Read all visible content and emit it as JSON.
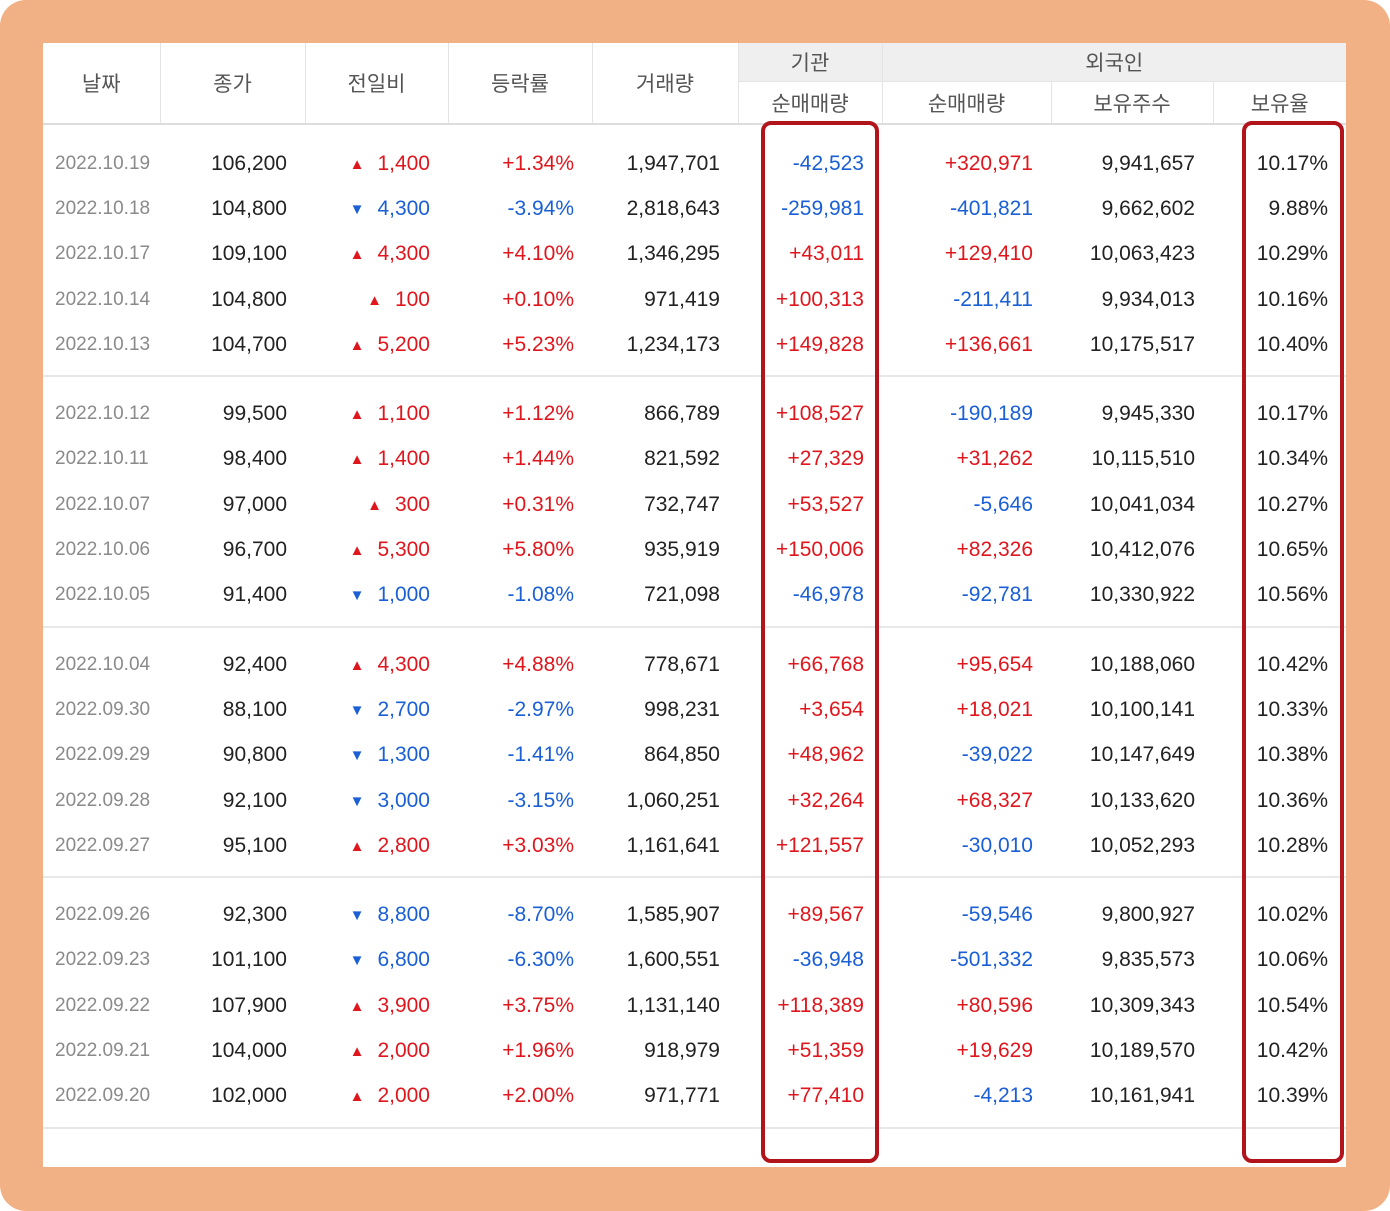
{
  "headers": {
    "date": "날짜",
    "close": "종가",
    "change": "전일비",
    "rate": "등락률",
    "volume": "거래량",
    "institution": "기관",
    "foreign": "외국인",
    "inst_net": "순매매량",
    "foreign_net": "순매매량",
    "foreign_shares": "보유주수",
    "foreign_ratio": "보유율"
  },
  "colors": {
    "frame": "#f2b184",
    "up": "#e0161d",
    "down": "#1a5fd6",
    "highlight": "#b2141c"
  },
  "rows": [
    {
      "date": "2022.10.19",
      "close": "106,200",
      "dir": "up",
      "change": "1,400",
      "rate": "+1.34%",
      "volume": "1,947,701",
      "inst": "-42,523",
      "foreign": "+320,971",
      "shares": "9,941,657",
      "ratio": "10.17%"
    },
    {
      "date": "2022.10.18",
      "close": "104,800",
      "dir": "down",
      "change": "4,300",
      "rate": "-3.94%",
      "volume": "2,818,643",
      "inst": "-259,981",
      "foreign": "-401,821",
      "shares": "9,662,602",
      "ratio": "9.88%"
    },
    {
      "date": "2022.10.17",
      "close": "109,100",
      "dir": "up",
      "change": "4,300",
      "rate": "+4.10%",
      "volume": "1,346,295",
      "inst": "+43,011",
      "foreign": "+129,410",
      "shares": "10,063,423",
      "ratio": "10.29%"
    },
    {
      "date": "2022.10.14",
      "close": "104,800",
      "dir": "up",
      "change": "100",
      "rate": "+0.10%",
      "volume": "971,419",
      "inst": "+100,313",
      "foreign": "-211,411",
      "shares": "9,934,013",
      "ratio": "10.16%"
    },
    {
      "date": "2022.10.13",
      "close": "104,700",
      "dir": "up",
      "change": "5,200",
      "rate": "+5.23%",
      "volume": "1,234,173",
      "inst": "+149,828",
      "foreign": "+136,661",
      "shares": "10,175,517",
      "ratio": "10.40%"
    },
    {
      "date": "2022.10.12",
      "close": "99,500",
      "dir": "up",
      "change": "1,100",
      "rate": "+1.12%",
      "volume": "866,789",
      "inst": "+108,527",
      "foreign": "-190,189",
      "shares": "9,945,330",
      "ratio": "10.17%"
    },
    {
      "date": "2022.10.11",
      "close": "98,400",
      "dir": "up",
      "change": "1,400",
      "rate": "+1.44%",
      "volume": "821,592",
      "inst": "+27,329",
      "foreign": "+31,262",
      "shares": "10,115,510",
      "ratio": "10.34%"
    },
    {
      "date": "2022.10.07",
      "close": "97,000",
      "dir": "up",
      "change": "300",
      "rate": "+0.31%",
      "volume": "732,747",
      "inst": "+53,527",
      "foreign": "-5,646",
      "shares": "10,041,034",
      "ratio": "10.27%"
    },
    {
      "date": "2022.10.06",
      "close": "96,700",
      "dir": "up",
      "change": "5,300",
      "rate": "+5.80%",
      "volume": "935,919",
      "inst": "+150,006",
      "foreign": "+82,326",
      "shares": "10,412,076",
      "ratio": "10.65%"
    },
    {
      "date": "2022.10.05",
      "close": "91,400",
      "dir": "down",
      "change": "1,000",
      "rate": "-1.08%",
      "volume": "721,098",
      "inst": "-46,978",
      "foreign": "-92,781",
      "shares": "10,330,922",
      "ratio": "10.56%"
    },
    {
      "date": "2022.10.04",
      "close": "92,400",
      "dir": "up",
      "change": "4,300",
      "rate": "+4.88%",
      "volume": "778,671",
      "inst": "+66,768",
      "foreign": "+95,654",
      "shares": "10,188,060",
      "ratio": "10.42%"
    },
    {
      "date": "2022.09.30",
      "close": "88,100",
      "dir": "down",
      "change": "2,700",
      "rate": "-2.97%",
      "volume": "998,231",
      "inst": "+3,654",
      "foreign": "+18,021",
      "shares": "10,100,141",
      "ratio": "10.33%"
    },
    {
      "date": "2022.09.29",
      "close": "90,800",
      "dir": "down",
      "change": "1,300",
      "rate": "-1.41%",
      "volume": "864,850",
      "inst": "+48,962",
      "foreign": "-39,022",
      "shares": "10,147,649",
      "ratio": "10.38%"
    },
    {
      "date": "2022.09.28",
      "close": "92,100",
      "dir": "down",
      "change": "3,000",
      "rate": "-3.15%",
      "volume": "1,060,251",
      "inst": "+32,264",
      "foreign": "+68,327",
      "shares": "10,133,620",
      "ratio": "10.36%"
    },
    {
      "date": "2022.09.27",
      "close": "95,100",
      "dir": "up",
      "change": "2,800",
      "rate": "+3.03%",
      "volume": "1,161,641",
      "inst": "+121,557",
      "foreign": "-30,010",
      "shares": "10,052,293",
      "ratio": "10.28%"
    },
    {
      "date": "2022.09.26",
      "close": "92,300",
      "dir": "down",
      "change": "8,800",
      "rate": "-8.70%",
      "volume": "1,585,907",
      "inst": "+89,567",
      "foreign": "-59,546",
      "shares": "9,800,927",
      "ratio": "10.02%"
    },
    {
      "date": "2022.09.23",
      "close": "101,100",
      "dir": "down",
      "change": "6,800",
      "rate": "-6.30%",
      "volume": "1,600,551",
      "inst": "-36,948",
      "foreign": "-501,332",
      "shares": "9,835,573",
      "ratio": "10.06%"
    },
    {
      "date": "2022.09.22",
      "close": "107,900",
      "dir": "up",
      "change": "3,900",
      "rate": "+3.75%",
      "volume": "1,131,140",
      "inst": "+118,389",
      "foreign": "+80,596",
      "shares": "10,309,343",
      "ratio": "10.54%"
    },
    {
      "date": "2022.09.21",
      "close": "104,000",
      "dir": "up",
      "change": "2,000",
      "rate": "+1.96%",
      "volume": "918,979",
      "inst": "+51,359",
      "foreign": "+19,629",
      "shares": "10,189,570",
      "ratio": "10.42%"
    },
    {
      "date": "2022.09.20",
      "close": "102,000",
      "dir": "up",
      "change": "2,000",
      "rate": "+2.00%",
      "volume": "971,771",
      "inst": "+77,410",
      "foreign": "-4,213",
      "shares": "10,161,941",
      "ratio": "10.39%"
    }
  ]
}
